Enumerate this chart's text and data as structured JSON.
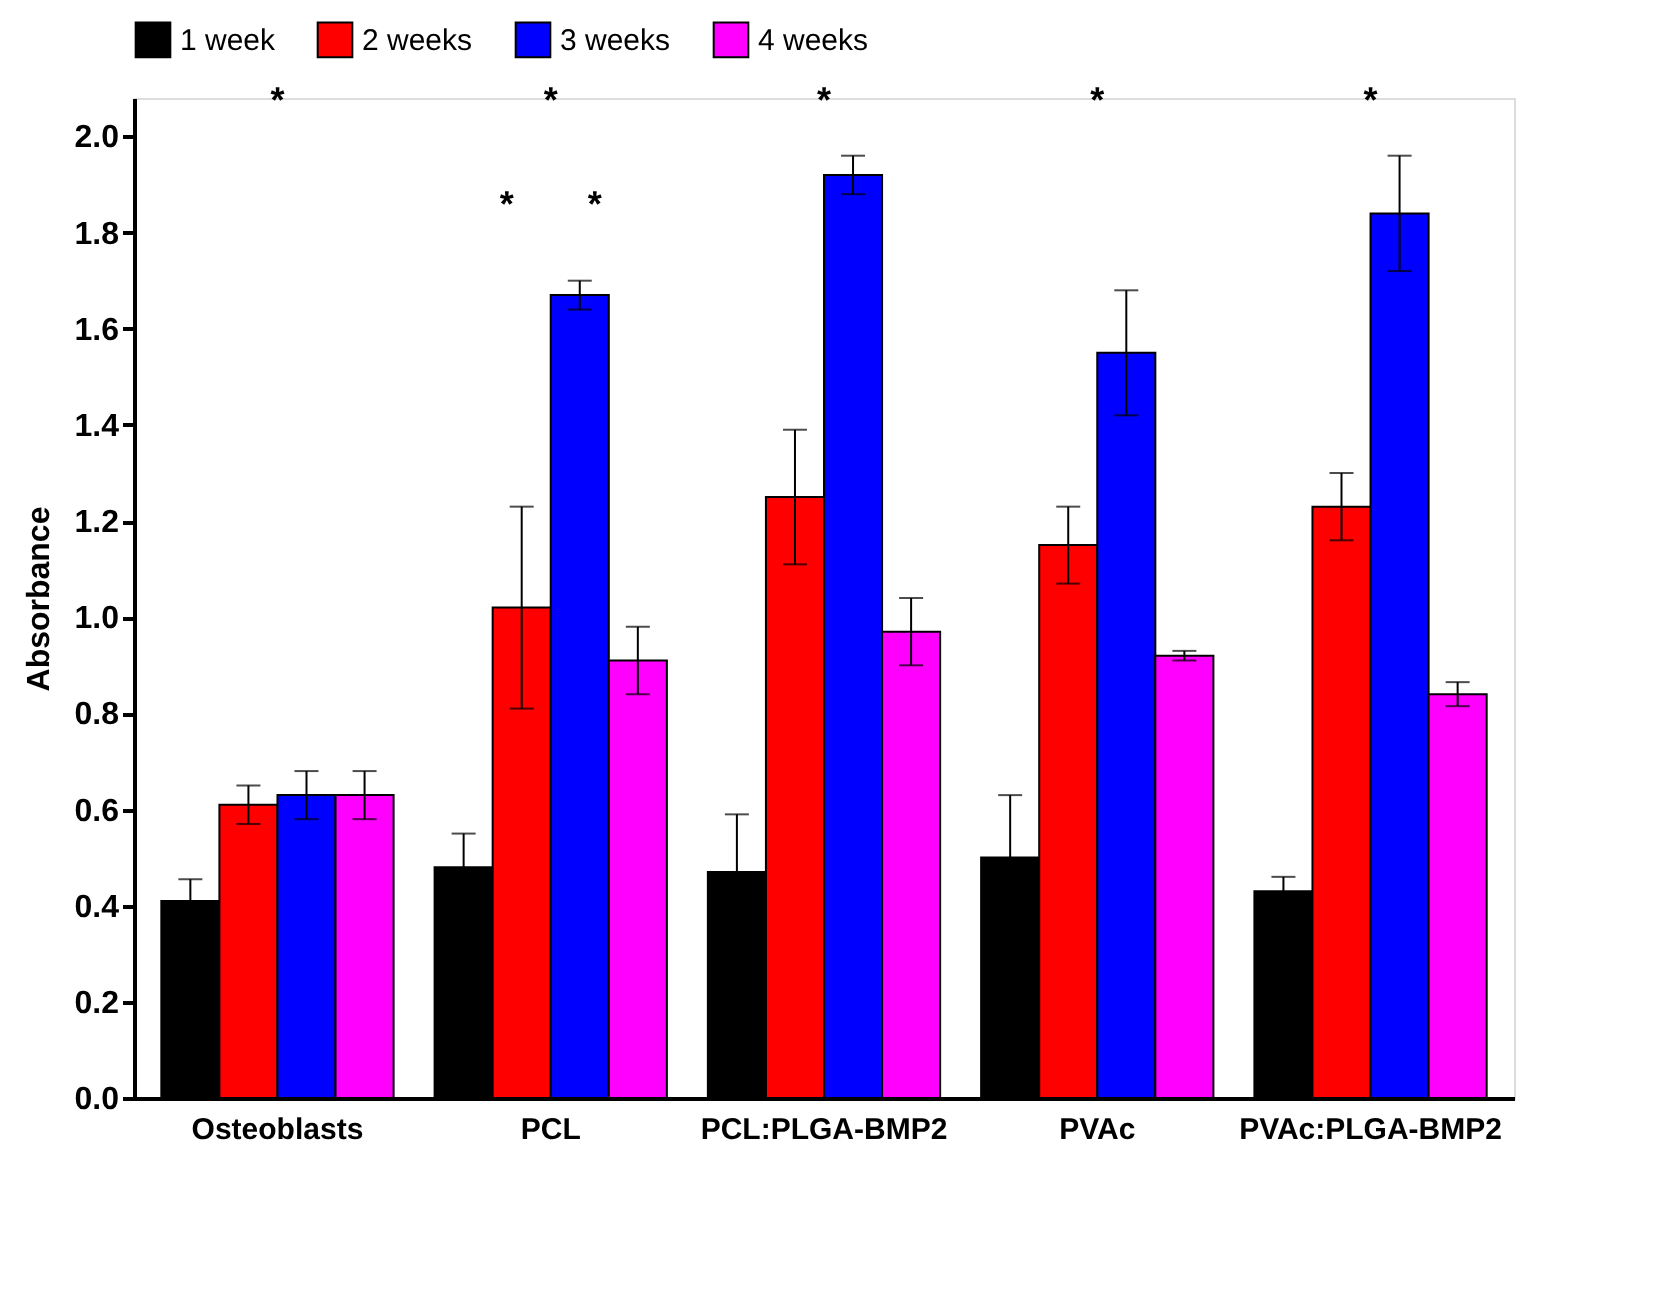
{
  "chart_data": {
    "type": "bar",
    "ylabel": "Absorbance",
    "categories": [
      "Osteoblasts",
      "PCL",
      "PCL:PLGA-BMP2",
      "PVAc",
      "PVAc:PLGA-BMP2"
    ],
    "series": [
      {
        "name": "1 week",
        "color": "#000000",
        "values": [
          0.41,
          0.48,
          0.47,
          0.5,
          0.43
        ],
        "errors": [
          0.045,
          0.07,
          0.12,
          0.13,
          0.03
        ]
      },
      {
        "name": "2 weeks",
        "color": "#ff0000",
        "values": [
          0.61,
          1.02,
          1.25,
          1.15,
          1.23
        ],
        "errors": [
          0.04,
          0.21,
          0.14,
          0.08,
          0.07
        ]
      },
      {
        "name": "3 weeks",
        "color": "#0000ff",
        "values": [
          0.63,
          1.67,
          1.92,
          1.55,
          1.84
        ],
        "errors": [
          0.05,
          0.03,
          0.04,
          0.13,
          0.12
        ]
      },
      {
        "name": "4 weeks",
        "color": "#ff00ff",
        "values": [
          0.63,
          0.91,
          0.97,
          0.92,
          0.84
        ],
        "errors": [
          0.05,
          0.07,
          0.07,
          0.01,
          0.025
        ]
      }
    ],
    "ylim": [
      0,
      2.08
    ],
    "yticks": [
      {
        "value": 0,
        "label": "0.0"
      },
      0.2,
      0.4,
      0.6,
      0.8,
      {
        "value": 1,
        "label": "1.0"
      },
      1.2,
      1.4,
      1.6,
      1.8,
      {
        "value": 2,
        "label": "2.0"
      }
    ],
    "grid": false,
    "legend": "top",
    "annotations": [
      "*",
      "*",
      "*",
      "*",
      "*",
      "*",
      "*"
    ]
  }
}
